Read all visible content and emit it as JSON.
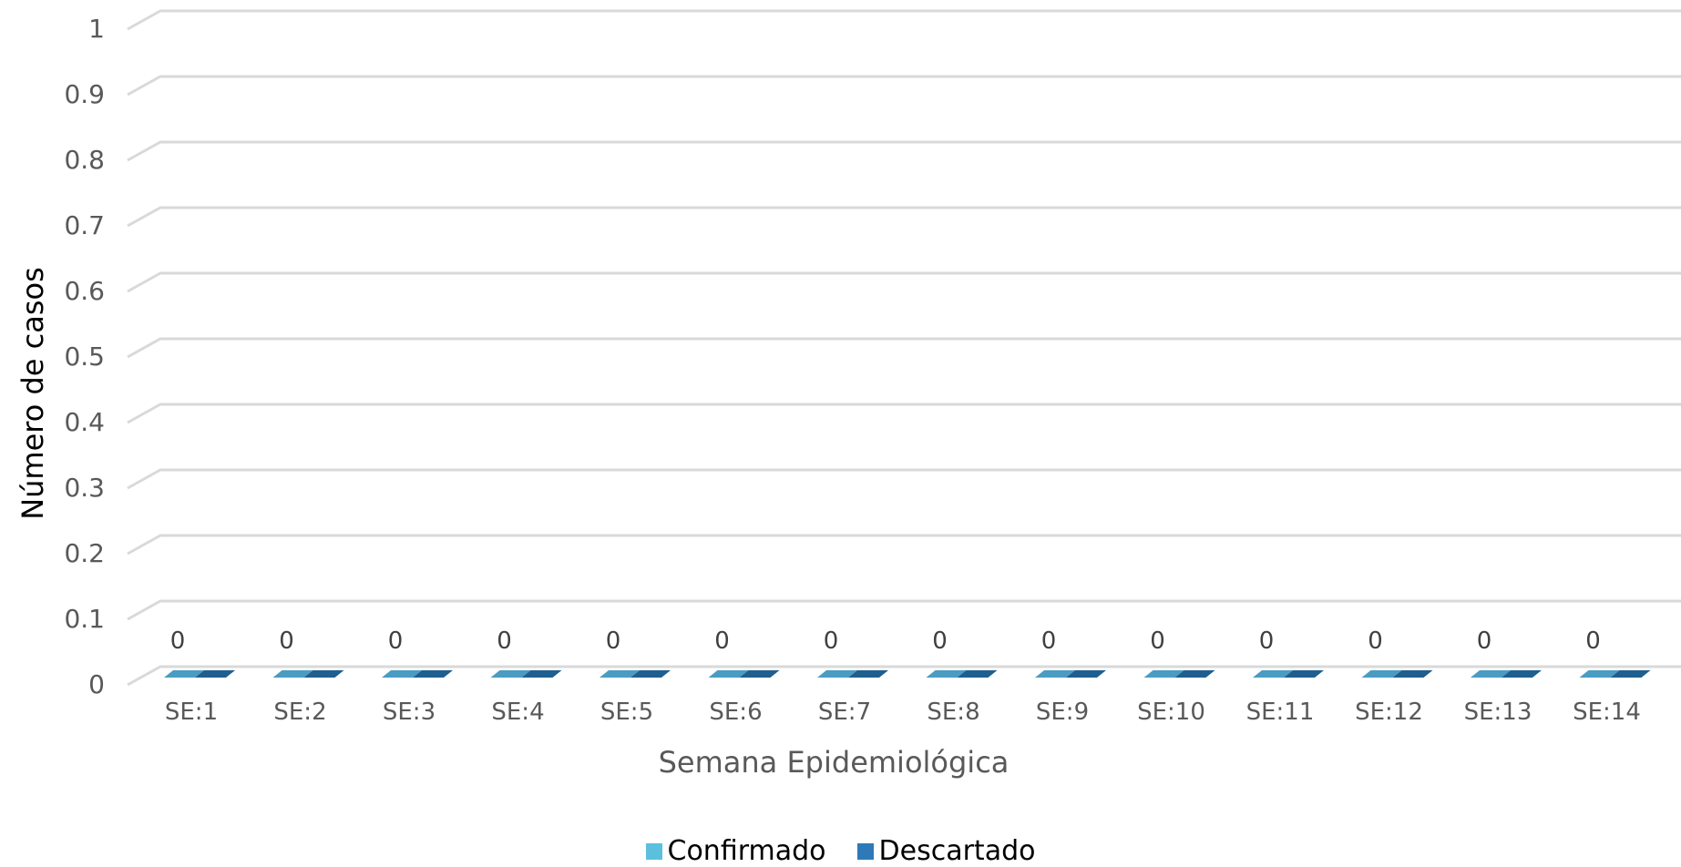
{
  "chart_data": {
    "type": "bar",
    "title": "",
    "xlabel": "Semana Epidemiológica",
    "ylabel": "Número de casos",
    "categories": [
      "SE:1",
      "SE:2",
      "SE:3",
      "SE:4",
      "SE:5",
      "SE:6",
      "SE:7",
      "SE:8",
      "SE:9",
      "SE:10",
      "SE:11",
      "SE:12",
      "SE:13",
      "SE:14"
    ],
    "series": [
      {
        "name": "Confirmado",
        "color": "#5bc0de",
        "values": [
          0,
          0,
          0,
          0,
          0,
          0,
          0,
          0,
          0,
          0,
          0,
          0,
          0,
          0
        ]
      },
      {
        "name": "Descartado",
        "color": "#2e7ab8",
        "values": [
          0,
          0,
          0,
          0,
          0,
          0,
          0,
          0,
          0,
          0,
          0,
          0,
          0,
          0
        ]
      }
    ],
    "data_labels": [
      "0",
      "0",
      "0",
      "0",
      "0",
      "0",
      "0",
      "0",
      "0",
      "0",
      "0",
      "0",
      "0",
      "0"
    ],
    "yticks": [
      "0",
      "0.1",
      "0.2",
      "0.3",
      "0.4",
      "0.5",
      "0.6",
      "0.7",
      "0.8",
      "0.9",
      "1"
    ],
    "ylim": [
      0,
      1
    ],
    "grid": true,
    "legend_position": "bottom"
  }
}
